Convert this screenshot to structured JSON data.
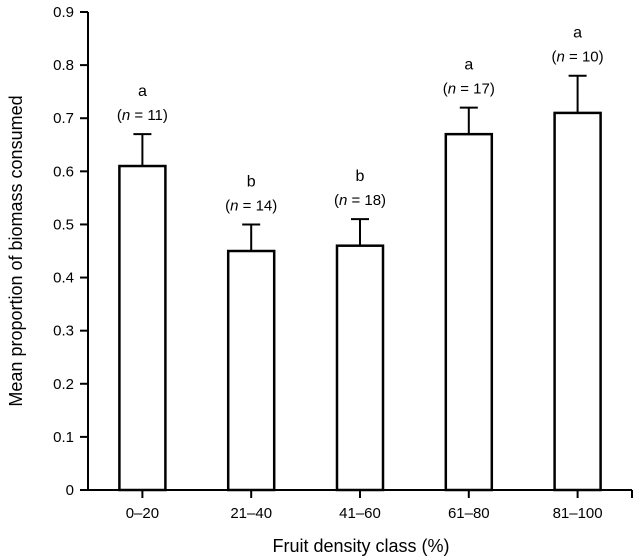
{
  "chart_data": {
    "type": "bar",
    "xlabel": "Fruit density class (%)",
    "ylabel": "Mean proportion of biomass consumed",
    "ylim": [
      0,
      0.9
    ],
    "yticks": [
      0,
      0.1,
      0.2,
      0.3,
      0.4,
      0.5,
      0.6,
      0.7,
      0.8,
      0.9
    ],
    "ytick_labels": [
      "0",
      "0.1",
      "0.2",
      "0.3",
      "0.4",
      "0.5",
      "0.6",
      "0.7",
      "0.8",
      "0.9"
    ],
    "categories": [
      "0–20",
      "21–40",
      "41–60",
      "61–80",
      "81–100"
    ],
    "values": [
      0.61,
      0.45,
      0.46,
      0.67,
      0.71
    ],
    "error_upper": [
      0.67,
      0.5,
      0.51,
      0.72,
      0.78
    ],
    "significance": [
      "a",
      "b",
      "b",
      "a",
      "a"
    ],
    "n_prefix": "n",
    "n_labels": [
      "(n = 11)",
      "(n = 14)",
      "(n = 18)",
      "(n = 17)",
      "(n = 10)"
    ],
    "n_values": [
      11,
      14,
      18,
      17,
      10
    ],
    "grid": false,
    "legend": "none"
  }
}
